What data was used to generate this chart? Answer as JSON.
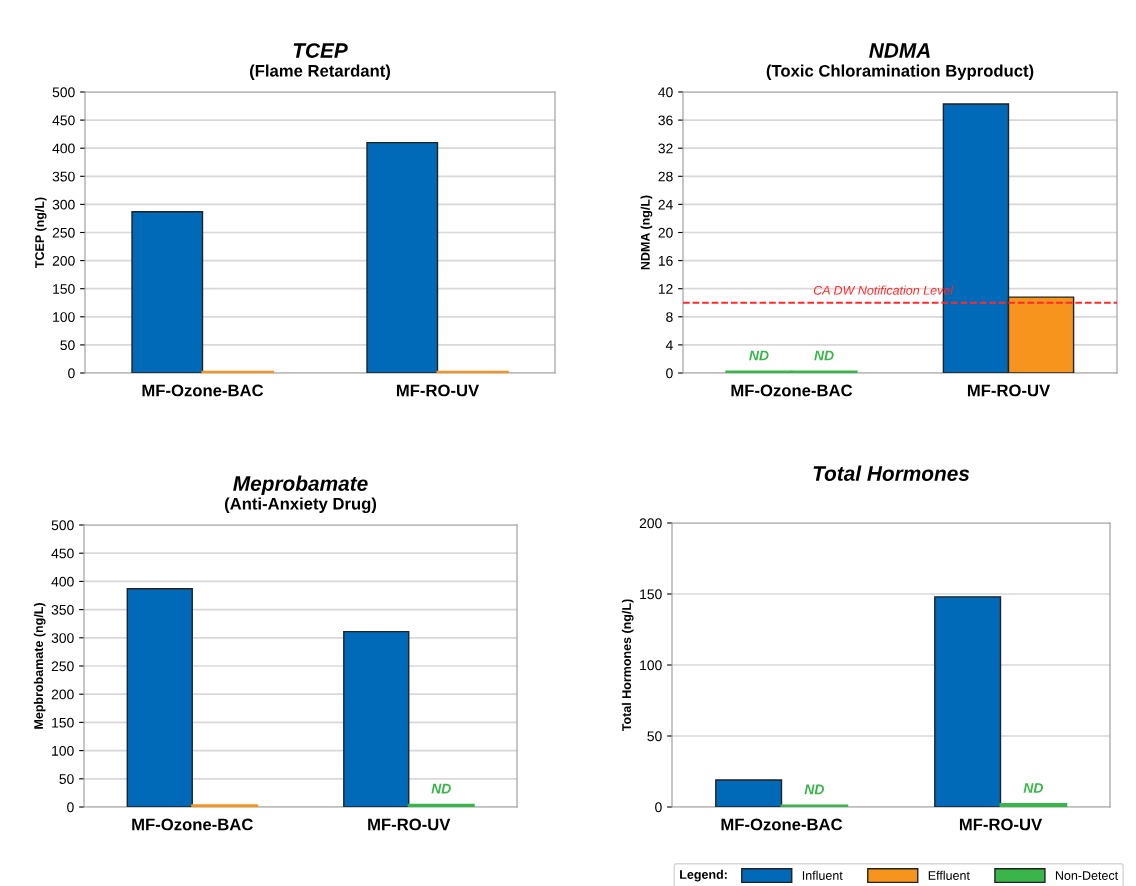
{
  "chart_data": [
    {
      "type": "bar",
      "title": "TCEP",
      "subtitle": "(Flame Retardant)",
      "ylabel": "TCEP (ng/L)",
      "categories": [
        "MF-Ozone-BAC",
        "MF-RO-UV"
      ],
      "ylim": [
        0,
        500
      ],
      "yticks": [
        0,
        50,
        100,
        150,
        200,
        250,
        300,
        350,
        400,
        450,
        500
      ],
      "grid": "y",
      "series": [
        {
          "color": "#0069b8",
          "values": [
            287,
            410
          ]
        },
        {
          "color": "#f7941d",
          "values": [
            2,
            2
          ]
        }
      ]
    },
    {
      "type": "bar",
      "title": "NDMA",
      "subtitle": "(Toxic Chloramination Byproduct)",
      "ylabel": "NDMA (ng/L)",
      "categories": [
        "MF-Ozone-BAC",
        "MF-RO-UV"
      ],
      "ylim": [
        0,
        40
      ],
      "yticks": [
        0,
        4,
        8,
        12,
        16,
        20,
        24,
        28,
        32,
        36,
        40
      ],
      "grid": "y",
      "ref_lines": [
        {
          "axis": "y",
          "value": 10,
          "label": "CA DW Notification Level",
          "color": "#ff2a2a",
          "line_style": "dashed"
        }
      ],
      "series": [
        {
          "colors": [
            "#39b54a",
            "#0069b8"
          ],
          "values": [
            0.2,
            38.3
          ],
          "value_labels": [
            "ND",
            null
          ]
        },
        {
          "colors": [
            "#39b54a",
            "#f7941d"
          ],
          "values": [
            0.2,
            10.8
          ],
          "value_labels": [
            "ND",
            null
          ]
        }
      ]
    },
    {
      "type": "bar",
      "title": "Meprobamate",
      "subtitle": "(Anti-Anxiety Drug)",
      "ylabel": "Mepbrobamate (ng/L)",
      "categories": [
        "MF-Ozone-BAC",
        "MF-RO-UV"
      ],
      "ylim": [
        0,
        500
      ],
      "yticks": [
        0,
        50,
        100,
        150,
        200,
        250,
        300,
        350,
        400,
        450,
        500
      ],
      "grid": "y",
      "series": [
        {
          "color": "#0069b8",
          "values": [
            387,
            311
          ]
        },
        {
          "colors": [
            "#f7941d",
            "#39b54a"
          ],
          "values": [
            3,
            4
          ],
          "value_labels": [
            null,
            "ND"
          ]
        }
      ]
    },
    {
      "type": "bar",
      "title": "Total Hormones",
      "ylabel": "Total Hormones (ng/L)",
      "categories": [
        "MF-Ozone-BAC",
        "MF-RO-UV"
      ],
      "ylim": [
        0,
        200
      ],
      "yticks": [
        0,
        50,
        100,
        150,
        200
      ],
      "grid": "y",
      "legend": "bottom",
      "legend_title": "Legend:",
      "series": [
        {
          "name": "Influent",
          "color": "#0069b8",
          "values": [
            19,
            148
          ]
        },
        {
          "name": "Effluent",
          "color": "#f7941d",
          "values": [
            null,
            null
          ]
        },
        {
          "name": "Non-Detect",
          "color": "#39b54a",
          "values": [
            1,
            2
          ],
          "value_labels": [
            "ND",
            "ND"
          ]
        }
      ]
    }
  ]
}
